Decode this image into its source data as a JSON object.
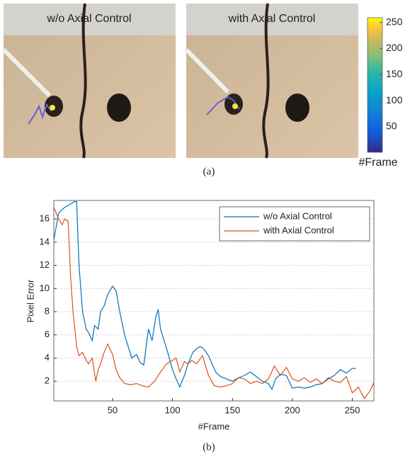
{
  "figure_a": {
    "panels": [
      {
        "title": "w/o Axial Control"
      },
      {
        "title": "with Axial Control"
      }
    ],
    "colorbar": {
      "label": "#Frame",
      "lim": [
        1,
        259
      ],
      "ticks": [
        50,
        100,
        150,
        200,
        250
      ]
    },
    "caption": "(a)"
  },
  "chart_data": {
    "type": "line",
    "xlabel": "#Frame",
    "ylabel": "Pixel Error",
    "xlim": [
      1,
      268
    ],
    "ylim": [
      0.3,
      17.6
    ],
    "xticks": [
      50,
      100,
      150,
      200,
      250
    ],
    "yticks": [
      2,
      4,
      6,
      8,
      10,
      12,
      14,
      16
    ],
    "grid": true,
    "legend": "top-right",
    "caption": "(b)",
    "series": [
      {
        "name": "w/o Axial Control",
        "color": "#0072bd",
        "x": [
          1,
          5,
          10,
          15,
          18,
          20,
          22,
          25,
          28,
          30,
          33,
          35,
          38,
          40,
          43,
          46,
          50,
          53,
          56,
          60,
          63,
          66,
          70,
          73,
          76,
          80,
          83,
          86,
          88,
          90,
          93,
          96,
          100,
          103,
          106,
          110,
          113,
          117,
          120,
          123,
          126,
          130,
          133,
          136,
          140,
          145,
          150,
          155,
          160,
          165,
          170,
          175,
          180,
          183,
          186,
          190,
          195,
          200,
          205,
          210,
          215,
          220,
          225,
          230,
          235,
          240,
          245,
          250,
          253
        ],
        "values": [
          14.2,
          16.5,
          17,
          17.3,
          17.5,
          17.5,
          12,
          8,
          6.5,
          6.2,
          5.5,
          6.8,
          6.5,
          8,
          8.5,
          9.5,
          10.2,
          9.8,
          8,
          6,
          5,
          4,
          4.3,
          3.6,
          3.4,
          6.5,
          5.5,
          7.5,
          8.2,
          6.5,
          5.5,
          4.5,
          3,
          2.2,
          1.5,
          2.5,
          3.5,
          4.5,
          4.8,
          5,
          4.8,
          4.2,
          3.5,
          2.8,
          2.4,
          2.2,
          2,
          2.3,
          2.5,
          2.8,
          2.4,
          2,
          1.8,
          1.3,
          2.2,
          2.6,
          2.5,
          1.4,
          1.5,
          1.4,
          1.5,
          1.7,
          1.8,
          2.2,
          2.5,
          3,
          2.7,
          3.1,
          3.1
        ]
      },
      {
        "name": "with Axial Control",
        "color": "#d95319",
        "x": [
          1,
          3,
          5,
          8,
          10,
          13,
          15,
          17,
          20,
          22,
          25,
          28,
          30,
          33,
          36,
          38,
          40,
          43,
          46,
          50,
          53,
          56,
          60,
          65,
          70,
          75,
          80,
          85,
          90,
          95,
          100,
          103,
          106,
          110,
          113,
          116,
          120,
          125,
          128,
          130,
          135,
          140,
          145,
          150,
          155,
          160,
          165,
          170,
          175,
          180,
          185,
          190,
          195,
          200,
          205,
          210,
          215,
          220,
          225,
          230,
          235,
          240,
          245,
          250,
          255,
          260,
          265,
          268
        ],
        "values": [
          17,
          16.5,
          16,
          15.5,
          16,
          15.8,
          11,
          8,
          5,
          4.2,
          4.5,
          3.8,
          3.5,
          4,
          2,
          3,
          3.5,
          4.5,
          5.2,
          4.3,
          3,
          2.3,
          1.8,
          1.7,
          1.8,
          1.6,
          1.5,
          2,
          2.8,
          3.5,
          3.8,
          4,
          2.8,
          3.7,
          3.5,
          3.8,
          3.5,
          4.2,
          3.2,
          2.5,
          1.6,
          1.5,
          1.6,
          1.8,
          2.3,
          2.2,
          1.8,
          2,
          1.8,
          2.2,
          3.3,
          2.5,
          3.2,
          2.2,
          2,
          2.3,
          1.9,
          2.2,
          1.8,
          2.3,
          2,
          1.9,
          2.4,
          1,
          1.5,
          0.5,
          1.2,
          1.9
        ]
      }
    ]
  }
}
